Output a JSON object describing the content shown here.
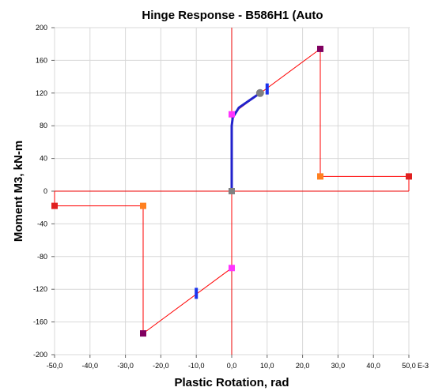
{
  "chart_data": {
    "type": "line",
    "title": "Hinge Response - B586H1 (Auto",
    "xlabel": "Plastic Rotation, rad",
    "ylabel": "Moment M3, kN-m",
    "x_unit_suffix": "E-3",
    "xlim": [
      -50,
      50
    ],
    "ylim": [
      -200,
      200
    ],
    "grid": true,
    "x_ticks": [
      "-50,0",
      "-40,0",
      "-30,0",
      "-20,0",
      "-10,0",
      "0,0",
      "10,0",
      "20,0",
      "30,0",
      "40,0",
      "50,0"
    ],
    "x_tick_values": [
      -50,
      -40,
      -30,
      -20,
      -10,
      0,
      10,
      20,
      30,
      40,
      50
    ],
    "y_ticks": [
      "200",
      "160",
      "120",
      "80",
      "40",
      "0",
      "-40",
      "-80",
      "-120",
      "-160",
      "-200"
    ],
    "y_tick_values": [
      200,
      160,
      120,
      80,
      40,
      0,
      -40,
      -80,
      -120,
      -160,
      -200
    ],
    "series": [
      {
        "role": "backbone",
        "color": "#ff0000",
        "x": [
          -50,
          -50,
          -25,
          -25,
          0,
          0,
          0,
          25,
          25,
          50,
          50
        ],
        "y": [
          0,
          -18,
          -18,
          -174,
          -94,
          0,
          94,
          174,
          18,
          18,
          0
        ]
      },
      {
        "role": "response",
        "color": "#2222cc",
        "x": [
          0,
          0,
          0.3,
          2,
          4,
          6,
          8
        ],
        "y": [
          0,
          80,
          90,
          102,
          108,
          114,
          120
        ]
      }
    ],
    "markers": [
      {
        "x": 0,
        "y": 0,
        "color": "#808080",
        "shape": "square"
      },
      {
        "x": 0,
        "y": 94,
        "color": "#ff33ff",
        "shape": "square"
      },
      {
        "x": 0,
        "y": -94,
        "color": "#ff33ff",
        "shape": "square"
      },
      {
        "x": 25,
        "y": 174,
        "color": "#800060",
        "shape": "square"
      },
      {
        "x": -25,
        "y": -174,
        "color": "#800060",
        "shape": "square"
      },
      {
        "x": 25,
        "y": 18,
        "color": "#ff8020",
        "shape": "square"
      },
      {
        "x": -25,
        "y": -18,
        "color": "#ff8020",
        "shape": "square"
      },
      {
        "x": 50,
        "y": 18,
        "color": "#e02020",
        "shape": "square"
      },
      {
        "x": -50,
        "y": -18,
        "color": "#e02020",
        "shape": "square"
      },
      {
        "x": 8,
        "y": 120,
        "color": "#808080",
        "shape": "circle"
      },
      {
        "x": 10,
        "y": 125,
        "color": "#1a33ee",
        "shape": "bar"
      },
      {
        "x": -10,
        "y": -125,
        "color": "#1a33ee",
        "shape": "bar"
      }
    ]
  }
}
